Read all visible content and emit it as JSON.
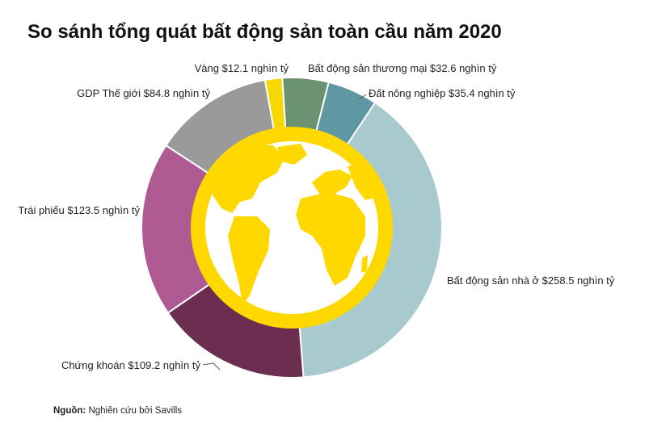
{
  "chart_data": {
    "type": "pie",
    "title": "So sánh tổng quát bất động sản toàn cầu năm 2020",
    "unit": "nghìn tỷ USD",
    "slices": [
      {
        "label": "Bất động sản thương mại $32.6 nghìn tỷ",
        "value": 32.6,
        "color": "#6b9372"
      },
      {
        "label": "Đất nông nghiệp $35.4 nghìn tỷ",
        "value": 35.4,
        "color": "#5f98a3"
      },
      {
        "label": "Bất động sản nhà ở $258.5 nghìn tỷ",
        "value": 258.5,
        "color": "#a8c9cd"
      },
      {
        "label": "Chứng khoán $109.2 nghìn tỷ",
        "value": 109.2,
        "color": "#6b2d50"
      },
      {
        "label": "Trái phiếu $123.5 nghìn tỷ",
        "value": 123.5,
        "color": "#b05a93"
      },
      {
        "label": "GDP Thế giới $84.8 nghìn tỷ",
        "value": 84.8,
        "color": "#9a9a9a"
      },
      {
        "label": "Vàng $12.1 nghìn tỷ",
        "value": 12.1,
        "color": "#f7d700"
      }
    ]
  },
  "source": {
    "prefix": "Nguồn:",
    "text": "Nghiên cứu bởi Savills"
  },
  "colors": {
    "globe_ring": "#ffd800",
    "land": "#ffd800",
    "ocean": "#ffffff"
  }
}
